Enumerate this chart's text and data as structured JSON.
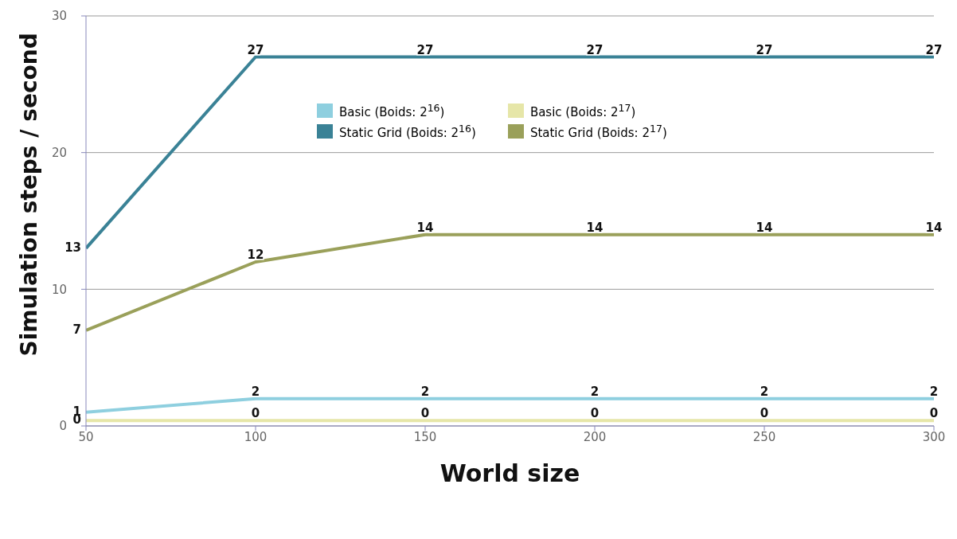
{
  "chart_data": {
    "type": "line",
    "xlabel": "World size",
    "ylabel": "Simulation steps / second",
    "x": [
      50,
      100,
      150,
      200,
      250,
      300
    ],
    "series": [
      {
        "name": "Basic (Boids: 2$^{16}$)",
        "color": "#8ecfdf",
        "values": [
          1,
          2,
          2,
          2,
          2,
          2
        ],
        "value_labels": [
          "1",
          "2",
          "2",
          "2",
          "2",
          "2"
        ]
      },
      {
        "name": "Static Grid (Boids: 2$^{16}$)",
        "color": "#3a8296",
        "values": [
          13,
          27,
          27,
          27,
          27,
          27
        ],
        "value_labels": [
          "13",
          "27",
          "27",
          "27",
          "27",
          "27"
        ]
      },
      {
        "name": "Basic (Boids: 2$^{17}$)",
        "color": "#e6e6a8",
        "values": [
          0.4,
          0.4,
          0.4,
          0.4,
          0.4,
          0.4
        ],
        "value_labels": [
          "0",
          "0",
          "0",
          "0",
          "0",
          "0"
        ]
      },
      {
        "name": "Static Grid (Boids: 2$^{17}$)",
        "color": "#9aa05a",
        "values": [
          7,
          12,
          14,
          14,
          14,
          14
        ],
        "value_labels": [
          "7",
          "12",
          "14",
          "14",
          "14",
          "14"
        ]
      }
    ],
    "xlim": [
      50,
      300
    ],
    "xticks": [
      50,
      100,
      150,
      200,
      250,
      300
    ],
    "ylim": [
      0,
      30
    ],
    "yticks": [
      0,
      10,
      20,
      30
    ],
    "grid": "y",
    "legend": "top",
    "marker": "none",
    "line_style": "solid"
  }
}
